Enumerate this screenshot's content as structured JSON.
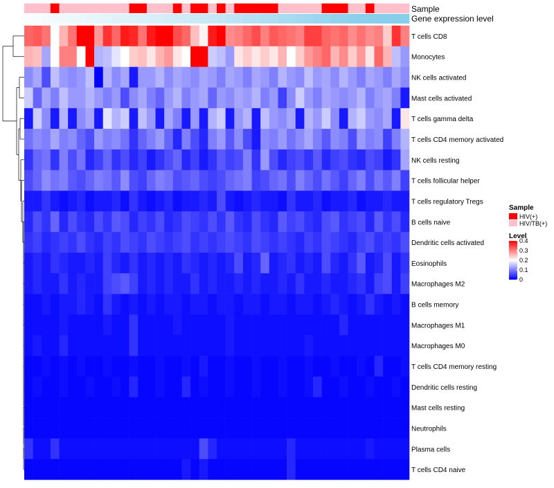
{
  "chart_data": {
    "type": "heatmap",
    "title": "",
    "n_samples": 44,
    "annotation_tracks": [
      {
        "name": "Sample"
      },
      {
        "name": "Gene expression level"
      }
    ],
    "rows": [
      "T cells CD8",
      "Monocytes",
      "NK cells activated",
      "Mast cells activated",
      "T cells gamma delta",
      "T cells CD4 memory activated",
      "NK cells resting",
      "T cells follicular helper",
      "T cells regulatory  Tregs",
      "B cells naive",
      "Dendritic cells activated",
      "Eosinophils",
      "Macrophages M2",
      "B cells memory",
      "Macrophages M1",
      "Macrophages M0",
      "T cells CD4 memory resting",
      "Dendritic cells resting",
      "Mast cells resting",
      "Neutrophils",
      "Plasma cells",
      "T cells CD4 naive"
    ],
    "sample_groups": [
      1,
      1,
      1,
      0,
      1,
      1,
      1,
      1,
      1,
      1,
      1,
      1,
      0,
      0,
      1,
      1,
      1,
      0,
      1,
      0,
      0,
      1,
      0,
      1,
      0,
      0,
      0,
      0,
      0,
      1,
      1,
      1,
      1,
      1,
      0,
      0,
      0,
      1,
      1,
      0,
      1,
      1,
      1,
      1
    ],
    "expression_track": [
      0.05,
      0.07,
      0.09,
      0.11,
      0.13,
      0.15,
      0.17,
      0.19,
      0.21,
      0.23,
      0.25,
      0.27,
      0.29,
      0.31,
      0.33,
      0.35,
      0.37,
      0.39,
      0.41,
      0.43,
      0.45,
      0.47,
      0.5,
      0.53,
      0.56,
      0.59,
      0.62,
      0.65,
      0.68,
      0.71,
      0.74,
      0.77,
      0.8,
      0.83,
      0.86,
      0.89,
      0.92,
      0.95,
      0.97,
      0.98,
      0.99,
      1.0,
      1.0,
      1.0
    ],
    "row_means": [
      0.33,
      0.26,
      0.12,
      0.12,
      0.1,
      0.09,
      0.06,
      0.08,
      0.02,
      0.05,
      0.04,
      0.03,
      0.03,
      0.02,
      0.015,
      0.015,
      0.01,
      0.01,
      0.005,
      0.005,
      0.015,
      0.01
    ],
    "data_note": "Per-sample cell values estimated from colour; values in level units (0–0.4)",
    "values": [
      [
        0.32,
        0.33,
        0.31,
        0.2,
        0.26,
        0.31,
        0.4,
        0.4,
        0.28,
        0.36,
        0.32,
        0.38,
        0.37,
        0.31,
        0.38,
        0.4,
        0.4,
        0.34,
        0.32,
        0.25,
        0.21,
        0.38,
        0.4,
        0.29,
        0.3,
        0.32,
        0.34,
        0.3,
        0.33,
        0.32,
        0.31,
        0.3,
        0.35,
        0.35,
        0.32,
        0.31,
        0.32,
        0.29,
        0.31,
        0.29,
        0.3,
        0.24,
        0.36,
        0.3
      ],
      [
        0.26,
        0.25,
        0.13,
        0.2,
        0.3,
        0.3,
        0.2,
        0.4,
        0.14,
        0.15,
        0.18,
        0.2,
        0.24,
        0.25,
        0.22,
        0.26,
        0.28,
        0.22,
        0.2,
        0.4,
        0.4,
        0.16,
        0.15,
        0.12,
        0.22,
        0.24,
        0.22,
        0.24,
        0.22,
        0.26,
        0.2,
        0.24,
        0.28,
        0.3,
        0.32,
        0.26,
        0.29,
        0.24,
        0.28,
        0.22,
        0.32,
        0.26,
        0.15,
        0.12
      ],
      [
        0.11,
        0.13,
        0.06,
        0.15,
        0.12,
        0.11,
        0.12,
        0.15,
        0.0,
        0.14,
        0.11,
        0.13,
        0.02,
        0.12,
        0.12,
        0.14,
        0.11,
        0.13,
        0.12,
        0.11,
        0.13,
        0.12,
        0.1,
        0.13,
        0.12,
        0.1,
        0.13,
        0.12,
        0.1,
        0.14,
        0.12,
        0.11,
        0.15,
        0.12,
        0.13,
        0.11,
        0.14,
        0.12,
        0.1,
        0.13,
        0.12,
        0.1,
        0.13,
        0.11
      ],
      [
        0.16,
        0.08,
        0.13,
        0.1,
        0.15,
        0.12,
        0.12,
        0.14,
        0.12,
        0.1,
        0.12,
        0.06,
        0.11,
        0.13,
        0.1,
        0.08,
        0.12,
        0.14,
        0.1,
        0.12,
        0.13,
        0.08,
        0.12,
        0.11,
        0.13,
        0.12,
        0.14,
        0.1,
        0.12,
        0.05,
        0.11,
        0.16,
        0.12,
        0.1,
        0.13,
        0.12,
        0.11,
        0.12,
        0.14,
        0.1,
        0.12,
        0.13,
        0.1,
        0.02
      ],
      [
        0.02,
        0.16,
        0.11,
        0.02,
        0.14,
        0.02,
        0.11,
        0.13,
        0.02,
        0.18,
        0.14,
        0.16,
        0.02,
        0.15,
        0.12,
        0.02,
        0.13,
        0.1,
        0.02,
        0.12,
        0.02,
        0.14,
        0.16,
        0.02,
        0.12,
        0.14,
        0.02,
        0.15,
        0.12,
        0.11,
        0.13,
        0.02,
        0.14,
        0.12,
        0.16,
        0.11,
        0.02,
        0.14,
        0.16,
        0.12,
        0.11,
        0.13,
        0.02,
        0.22
      ],
      [
        0.09,
        0.11,
        0.1,
        0.13,
        0.1,
        0.11,
        0.08,
        0.06,
        0.12,
        0.1,
        0.11,
        0.09,
        0.04,
        0.08,
        0.1,
        0.12,
        0.08,
        0.03,
        0.1,
        0.06,
        0.03,
        0.1,
        0.12,
        0.07,
        0.11,
        0.06,
        0.02,
        0.11,
        0.1,
        0.12,
        0.09,
        0.11,
        0.13,
        0.1,
        0.07,
        0.11,
        0.1,
        0.06,
        0.12,
        0.1,
        0.11,
        0.05,
        0.1,
        0.14
      ],
      [
        0.04,
        0.08,
        0.09,
        0.04,
        0.1,
        0.06,
        0.09,
        0.03,
        0.05,
        0.08,
        0.04,
        0.06,
        0.03,
        0.05,
        0.02,
        0.04,
        0.06,
        0.08,
        0.03,
        0.05,
        0.02,
        0.04,
        0.07,
        0.05,
        0.06,
        0.1,
        0.04,
        0.12,
        0.06,
        0.03,
        0.05,
        0.06,
        0.04,
        0.07,
        0.03,
        0.05,
        0.06,
        0.04,
        0.03,
        0.06,
        0.05,
        0.02,
        0.04,
        0.13
      ],
      [
        0.06,
        0.08,
        0.11,
        0.09,
        0.1,
        0.07,
        0.06,
        0.08,
        0.1,
        0.09,
        0.07,
        0.11,
        0.06,
        0.05,
        0.08,
        0.1,
        0.09,
        0.06,
        0.07,
        0.08,
        0.06,
        0.05,
        0.06,
        0.08,
        0.09,
        0.1,
        0.05,
        0.06,
        0.08,
        0.09,
        0.06,
        0.1,
        0.08,
        0.06,
        0.09,
        0.07,
        0.05,
        0.08,
        0.1,
        0.06,
        0.09,
        0.07,
        0.1,
        0.05
      ],
      [
        0.02,
        0.02,
        0.04,
        0.02,
        0.01,
        0.02,
        0.03,
        0.01,
        0.02,
        0.02,
        0.03,
        0.01,
        0.04,
        0.02,
        0.01,
        0.02,
        0.03,
        0.01,
        0.02,
        0.02,
        0.03,
        0.02,
        0.06,
        0.02,
        0.01,
        0.02,
        0.03,
        0.02,
        0.02,
        0.01,
        0.04,
        0.02,
        0.02,
        0.03,
        0.01,
        0.02,
        0.02,
        0.03,
        0.01,
        0.02,
        0.02,
        0.03,
        0.02,
        0.02
      ],
      [
        0.03,
        0.06,
        0.04,
        0.08,
        0.03,
        0.06,
        0.04,
        0.03,
        0.06,
        0.04,
        0.07,
        0.06,
        0.03,
        0.05,
        0.04,
        0.06,
        0.03,
        0.04,
        0.06,
        0.05,
        0.04,
        0.06,
        0.04,
        0.07,
        0.04,
        0.03,
        0.06,
        0.04,
        0.03,
        0.07,
        0.05,
        0.06,
        0.04,
        0.03,
        0.06,
        0.07,
        0.04,
        0.05,
        0.06,
        0.03,
        0.07,
        0.04,
        0.06,
        0.03
      ],
      [
        0.04,
        0.05,
        0.03,
        0.04,
        0.05,
        0.04,
        0.06,
        0.04,
        0.03,
        0.05,
        0.04,
        0.06,
        0.05,
        0.04,
        0.06,
        0.05,
        0.04,
        0.05,
        0.06,
        0.04,
        0.05,
        0.04,
        0.05,
        0.06,
        0.05,
        0.04,
        0.06,
        0.05,
        0.04,
        0.05,
        0.04,
        0.03,
        0.05,
        0.04,
        0.06,
        0.05,
        0.04,
        0.03,
        0.05,
        0.06,
        0.04,
        0.05,
        0.04,
        0.06
      ],
      [
        0.02,
        0.03,
        0.02,
        0.04,
        0.03,
        0.02,
        0.02,
        0.03,
        0.02,
        0.05,
        0.03,
        0.02,
        0.04,
        0.02,
        0.03,
        0.02,
        0.03,
        0.02,
        0.04,
        0.03,
        0.02,
        0.03,
        0.02,
        0.03,
        0.06,
        0.02,
        0.03,
        0.08,
        0.02,
        0.03,
        0.04,
        0.02,
        0.03,
        0.02,
        0.06,
        0.03,
        0.02,
        0.04,
        0.07,
        0.02,
        0.03,
        0.06,
        0.02,
        0.04
      ],
      [
        0.02,
        0.03,
        0.02,
        0.02,
        0.04,
        0.02,
        0.03,
        0.02,
        0.02,
        0.05,
        0.06,
        0.07,
        0.05,
        0.02,
        0.03,
        0.02,
        0.03,
        0.02,
        0.02,
        0.04,
        0.02,
        0.03,
        0.02,
        0.02,
        0.03,
        0.02,
        0.03,
        0.02,
        0.02,
        0.03,
        0.02,
        0.04,
        0.02,
        0.02,
        0.03,
        0.02,
        0.02,
        0.03,
        0.04,
        0.02,
        0.05,
        0.06,
        0.02,
        0.05
      ],
      [
        0.01,
        0.01,
        0.02,
        0.01,
        0.02,
        0.02,
        0.03,
        0.02,
        0.01,
        0.04,
        0.02,
        0.01,
        0.02,
        0.01,
        0.02,
        0.01,
        0.02,
        0.02,
        0.01,
        0.02,
        0.02,
        0.01,
        0.02,
        0.02,
        0.01,
        0.02,
        0.02,
        0.01,
        0.02,
        0.02,
        0.01,
        0.02,
        0.02,
        0.01,
        0.02,
        0.03,
        0.02,
        0.01,
        0.02,
        0.04,
        0.02,
        0.01,
        0.02,
        0.01
      ],
      [
        0.01,
        0.01,
        0.01,
        0.01,
        0.02,
        0.01,
        0.01,
        0.01,
        0.01,
        0.02,
        0.01,
        0.01,
        0.04,
        0.01,
        0.01,
        0.01,
        0.01,
        0.02,
        0.01,
        0.01,
        0.01,
        0.01,
        0.01,
        0.02,
        0.01,
        0.01,
        0.01,
        0.01,
        0.01,
        0.01,
        0.01,
        0.01,
        0.01,
        0.01,
        0.01,
        0.01,
        0.03,
        0.01,
        0.01,
        0.01,
        0.01,
        0.01,
        0.01,
        0.01
      ],
      [
        0.01,
        0.02,
        0.01,
        0.01,
        0.03,
        0.01,
        0.01,
        0.01,
        0.01,
        0.01,
        0.01,
        0.01,
        0.04,
        0.01,
        0.01,
        0.01,
        0.01,
        0.01,
        0.01,
        0.01,
        0.01,
        0.01,
        0.01,
        0.02,
        0.01,
        0.01,
        0.01,
        0.01,
        0.01,
        0.01,
        0.01,
        0.01,
        0.02,
        0.01,
        0.01,
        0.01,
        0.01,
        0.01,
        0.01,
        0.01,
        0.01,
        0.01,
        0.01,
        0.01
      ],
      [
        0.005,
        0.005,
        0.01,
        0.005,
        0.01,
        0.005,
        0.01,
        0.005,
        0.005,
        0.01,
        0.005,
        0.005,
        0.01,
        0.005,
        0.005,
        0.01,
        0.005,
        0.005,
        0.01,
        0.005,
        0.02,
        0.005,
        0.005,
        0.01,
        0.005,
        0.005,
        0.01,
        0.005,
        0.005,
        0.01,
        0.005,
        0.005,
        0.01,
        0.005,
        0.005,
        0.01,
        0.005,
        0.005,
        0.01,
        0.005,
        0.03,
        0.005,
        0.005,
        0.01
      ],
      [
        0.005,
        0.01,
        0.005,
        0.005,
        0.01,
        0.005,
        0.005,
        0.01,
        0.005,
        0.005,
        0.01,
        0.005,
        0.03,
        0.005,
        0.005,
        0.01,
        0.005,
        0.005,
        0.03,
        0.005,
        0.01,
        0.005,
        0.005,
        0.01,
        0.005,
        0.005,
        0.01,
        0.005,
        0.005,
        0.01,
        0.005,
        0.005,
        0.01,
        0.03,
        0.005,
        0.005,
        0.01,
        0.005,
        0.005,
        0.01,
        0.005,
        0.005,
        0.01,
        0.005
      ],
      [
        0.005,
        0.005,
        0.005,
        0.005,
        0.005,
        0.005,
        0.005,
        0.005,
        0.005,
        0.005,
        0.005,
        0.005,
        0.005,
        0.005,
        0.005,
        0.005,
        0.005,
        0.005,
        0.005,
        0.005,
        0.005,
        0.005,
        0.005,
        0.005,
        0.005,
        0.005,
        0.005,
        0.005,
        0.005,
        0.005,
        0.005,
        0.005,
        0.005,
        0.005,
        0.005,
        0.005,
        0.005,
        0.005,
        0.005,
        0.005,
        0.005,
        0.005,
        0.005,
        0.005
      ],
      [
        0.005,
        0.005,
        0.005,
        0.005,
        0.005,
        0.005,
        0.005,
        0.005,
        0.005,
        0.005,
        0.005,
        0.005,
        0.005,
        0.005,
        0.005,
        0.005,
        0.005,
        0.005,
        0.005,
        0.005,
        0.005,
        0.005,
        0.005,
        0.005,
        0.005,
        0.005,
        0.005,
        0.005,
        0.005,
        0.005,
        0.005,
        0.005,
        0.005,
        0.005,
        0.005,
        0.005,
        0.005,
        0.005,
        0.005,
        0.005,
        0.005,
        0.005,
        0.005,
        0.005
      ],
      [
        0.04,
        0.01,
        0.01,
        0.04,
        0.01,
        0.01,
        0.01,
        0.01,
        0.01,
        0.01,
        0.01,
        0.01,
        0.01,
        0.01,
        0.01,
        0.01,
        0.01,
        0.01,
        0.01,
        0.01,
        0.06,
        0.03,
        0.01,
        0.01,
        0.01,
        0.01,
        0.01,
        0.01,
        0.01,
        0.01,
        0.03,
        0.01,
        0.01,
        0.01,
        0.01,
        0.01,
        0.01,
        0.01,
        0.01,
        0.02,
        0.01,
        0.01,
        0.01,
        0.01
      ],
      [
        0.005,
        0.005,
        0.005,
        0.005,
        0.005,
        0.005,
        0.005,
        0.005,
        0.005,
        0.005,
        0.005,
        0.005,
        0.005,
        0.005,
        0.005,
        0.005,
        0.005,
        0.005,
        0.02,
        0.005,
        0.02,
        0.005,
        0.005,
        0.005,
        0.005,
        0.005,
        0.005,
        0.005,
        0.005,
        0.005,
        0.03,
        0.005,
        0.005,
        0.005,
        0.005,
        0.005,
        0.005,
        0.005,
        0.005,
        0.005,
        0.005,
        0.005,
        0.005,
        0.005
      ]
    ],
    "legend_sample": {
      "title": "Sample",
      "entries": [
        {
          "label": "HIV(+)",
          "color": "#ff0000"
        },
        {
          "label": "HIV/TB(+)",
          "color": "#ffc0cb"
        }
      ]
    },
    "legend_level": {
      "title": "Level",
      "ticks": [
        "0.4",
        "0.3",
        "0.2",
        "0.1",
        "0"
      ],
      "tick_values": [
        0.4,
        0.3,
        0.2,
        0.1,
        0
      ],
      "range": [
        0,
        0.4
      ],
      "colors": [
        "#0000ff",
        "#ffffff",
        "#ff0000"
      ]
    },
    "track_colors": [
      "#ffffff",
      "#87ceeb"
    ]
  }
}
